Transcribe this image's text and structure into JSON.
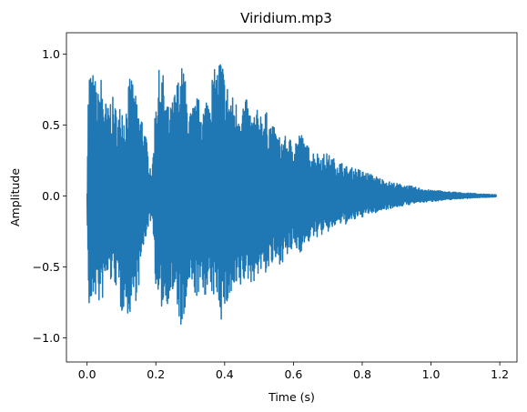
{
  "chart_data": {
    "type": "line",
    "title": "Viridium.mp3",
    "xlabel": "Time (s)",
    "ylabel": "Amplitude",
    "xlim": [
      -0.06,
      1.25
    ],
    "ylim": [
      -1.17,
      1.15
    ],
    "xticks": [
      0.0,
      0.2,
      0.4,
      0.6,
      0.8,
      1.0,
      1.2
    ],
    "xtick_labels": [
      "0.0",
      "0.2",
      "0.4",
      "0.6",
      "0.8",
      "1.0",
      "1.2"
    ],
    "yticks": [
      -1.0,
      -0.5,
      0.0,
      0.5,
      1.0
    ],
    "ytick_labels": [
      "−1.0",
      "−0.5",
      "0.0",
      "0.5",
      "1.0"
    ],
    "grid": false,
    "legend": "none",
    "series_color": "#1f77b4",
    "envelope": {
      "x": [
        0.0,
        0.003,
        0.006,
        0.01,
        0.015,
        0.02,
        0.025,
        0.03,
        0.04,
        0.05,
        0.06,
        0.07,
        0.08,
        0.09,
        0.1,
        0.11,
        0.12,
        0.13,
        0.14,
        0.15,
        0.16,
        0.17,
        0.18,
        0.19,
        0.2,
        0.21,
        0.22,
        0.23,
        0.24,
        0.25,
        0.26,
        0.27,
        0.28,
        0.29,
        0.3,
        0.32,
        0.34,
        0.36,
        0.38,
        0.39,
        0.4,
        0.42,
        0.44,
        0.46,
        0.48,
        0.5,
        0.52,
        0.54,
        0.56,
        0.58,
        0.6,
        0.62,
        0.64,
        0.66,
        0.68,
        0.7,
        0.72,
        0.74,
        0.76,
        0.78,
        0.8,
        0.82,
        0.84,
        0.86,
        0.88,
        0.9,
        0.92,
        0.94,
        0.96,
        0.98,
        1.0,
        1.02,
        1.04,
        1.06,
        1.08,
        1.1,
        1.12,
        1.14,
        1.16,
        1.18,
        1.19
      ],
      "max": [
        0.03,
        0.7,
        0.92,
        0.9,
        0.93,
        0.8,
        0.85,
        0.7,
        0.86,
        0.72,
        0.62,
        0.73,
        0.66,
        0.58,
        0.7,
        0.58,
        0.8,
        0.86,
        0.72,
        0.6,
        0.58,
        0.45,
        0.25,
        0.2,
        0.75,
        0.9,
        0.88,
        0.7,
        0.6,
        0.7,
        0.8,
        0.88,
        0.95,
        0.72,
        0.6,
        0.7,
        0.65,
        0.85,
        0.93,
        1.03,
        0.85,
        0.72,
        0.66,
        0.7,
        0.58,
        0.62,
        0.6,
        0.5,
        0.42,
        0.42,
        0.4,
        0.46,
        0.36,
        0.32,
        0.3,
        0.3,
        0.26,
        0.24,
        0.2,
        0.2,
        0.18,
        0.16,
        0.14,
        0.12,
        0.1,
        0.09,
        0.08,
        0.07,
        0.06,
        0.05,
        0.04,
        0.04,
        0.03,
        0.03,
        0.025,
        0.02,
        0.02,
        0.015,
        0.012,
        0.01,
        0.008
      ],
      "min": [
        -0.03,
        -0.68,
        -0.85,
        -0.84,
        -0.78,
        -0.7,
        -0.72,
        -0.75,
        -0.8,
        -0.68,
        -0.6,
        -0.62,
        -0.62,
        -0.7,
        -0.85,
        -0.75,
        -0.88,
        -0.78,
        -0.76,
        -0.65,
        -0.45,
        -0.3,
        -0.2,
        -0.15,
        -0.65,
        -0.85,
        -0.78,
        -0.8,
        -0.7,
        -0.72,
        -0.8,
        -0.9,
        -1.06,
        -0.72,
        -0.68,
        -0.72,
        -0.7,
        -0.72,
        -0.72,
        -0.88,
        -0.82,
        -0.74,
        -0.7,
        -0.6,
        -0.62,
        -0.55,
        -0.55,
        -0.5,
        -0.48,
        -0.45,
        -0.38,
        -0.4,
        -0.34,
        -0.3,
        -0.28,
        -0.26,
        -0.22,
        -0.2,
        -0.2,
        -0.17,
        -0.15,
        -0.13,
        -0.12,
        -0.1,
        -0.09,
        -0.08,
        -0.07,
        -0.06,
        -0.05,
        -0.045,
        -0.04,
        -0.035,
        -0.03,
        -0.025,
        -0.02,
        -0.018,
        -0.015,
        -0.012,
        -0.01,
        -0.008,
        -0.006
      ]
    }
  }
}
